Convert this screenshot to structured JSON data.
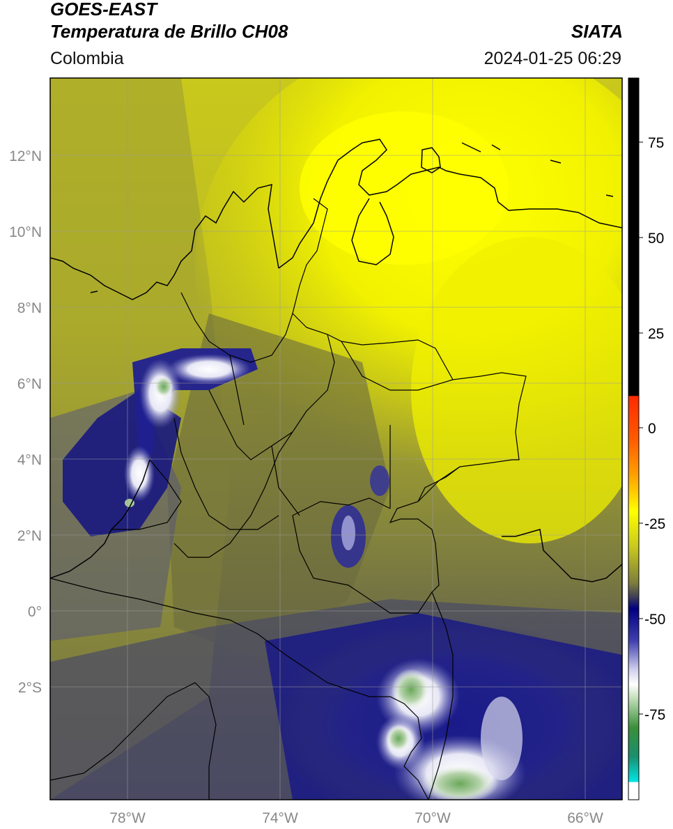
{
  "header": {
    "satellite": "GOES-EAST",
    "product": "Temperatura de Brillo CH08",
    "brand": "SIATA",
    "region": "Colombia",
    "datetime": "2024-01-25 06:29"
  },
  "map": {
    "lat_ticks": [
      "12°N",
      "10°N",
      "8°N",
      "6°N",
      "4°N",
      "2°N",
      "0°",
      "2°S"
    ],
    "lon_ticks": [
      "78°W",
      "74°W",
      "70°W",
      "66°W"
    ],
    "extent": {
      "lon_min": -80,
      "lon_max": -65,
      "lat_min": -5,
      "lat_max": 14
    }
  },
  "colorbar": {
    "ticks": [
      "75",
      "50",
      "25",
      "0",
      "-25",
      "-50",
      "-75"
    ],
    "colors": {
      "black": "#000000",
      "red": "#ff2a00",
      "orange": "#ffa500",
      "yellow": "#ffff00",
      "olive": "#7d7d3c",
      "navy": "#000080",
      "white": "#ffffff",
      "green": "#2e8b2e",
      "cyan": "#00e5e5"
    }
  }
}
